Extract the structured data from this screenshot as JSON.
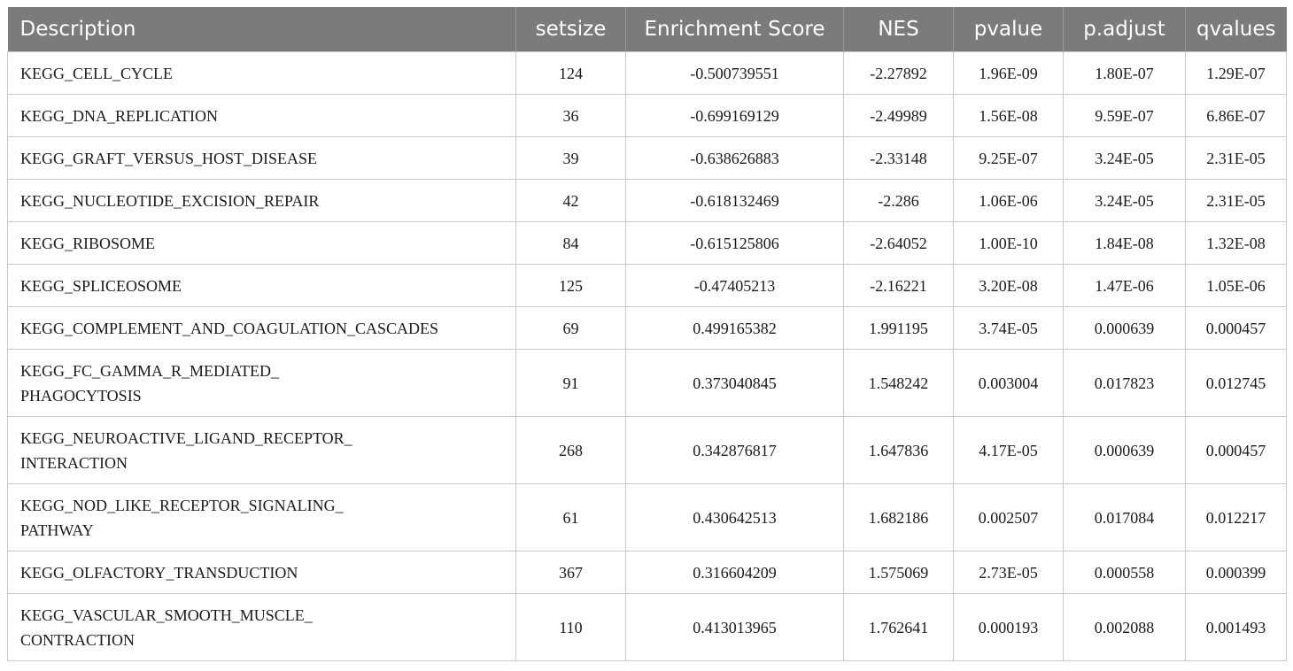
{
  "table": {
    "columns": [
      "Description",
      "setsize",
      "Enrichment Score",
      "NES",
      "pvalue",
      "p.adjust",
      "qvalues"
    ],
    "rows": [
      {
        "description": [
          "KEGG_CELL_CYCLE"
        ],
        "cells": [
          "124",
          "-0.500739551",
          "-2.27892",
          "1.96E-09",
          "1.80E-07",
          "1.29E-07"
        ]
      },
      {
        "description": [
          "KEGG_DNA_REPLICATION"
        ],
        "cells": [
          "36",
          "-0.699169129",
          "-2.49989",
          "1.56E-08",
          "9.59E-07",
          "6.86E-07"
        ]
      },
      {
        "description": [
          "KEGG_GRAFT_VERSUS_HOST_DISEASE"
        ],
        "cells": [
          "39",
          "-0.638626883",
          "-2.33148",
          "9.25E-07",
          "3.24E-05",
          "2.31E-05"
        ]
      },
      {
        "description": [
          "KEGG_NUCLEOTIDE_EXCISION_REPAIR"
        ],
        "cells": [
          "42",
          "-0.618132469",
          "-2.286",
          "1.06E-06",
          "3.24E-05",
          "2.31E-05"
        ]
      },
      {
        "description": [
          "KEGG_RIBOSOME"
        ],
        "cells": [
          "84",
          "-0.615125806",
          "-2.64052",
          "1.00E-10",
          "1.84E-08",
          "1.32E-08"
        ]
      },
      {
        "description": [
          "KEGG_SPLICEOSOME"
        ],
        "cells": [
          "125",
          "-0.47405213",
          "-2.16221",
          "3.20E-08",
          "1.47E-06",
          "1.05E-06"
        ]
      },
      {
        "description": [
          "KEGG_COMPLEMENT_AND_COAGULATION_CASCADES"
        ],
        "cells": [
          "69",
          "0.499165382",
          "1.991195",
          "3.74E-05",
          "0.000639",
          "0.000457"
        ]
      },
      {
        "description": [
          "KEGG_FC_GAMMA_R_MEDIATED_",
          "PHAGOCYTOSIS"
        ],
        "cells": [
          "91",
          "0.373040845",
          "1.548242",
          "0.003004",
          "0.017823",
          "0.012745"
        ]
      },
      {
        "description": [
          "KEGG_NEUROACTIVE_LIGAND_RECEPTOR_",
          "INTERACTION"
        ],
        "cells": [
          "268",
          "0.342876817",
          "1.647836",
          "4.17E-05",
          "0.000639",
          "0.000457"
        ]
      },
      {
        "description": [
          "KEGG_NOD_LIKE_RECEPTOR_SIGNALING_",
          "PATHWAY"
        ],
        "cells": [
          "61",
          "0.430642513",
          "1.682186",
          "0.002507",
          "0.017084",
          "0.012217"
        ]
      },
      {
        "description": [
          "KEGG_OLFACTORY_TRANSDUCTION"
        ],
        "cells": [
          "367",
          "0.316604209",
          "1.575069",
          "2.73E-05",
          "0.000558",
          "0.000399"
        ]
      },
      {
        "description": [
          "KEGG_VASCULAR_SMOOTH_MUSCLE_",
          "CONTRACTION"
        ],
        "cells": [
          "110",
          "0.413013965",
          "1.762641",
          "0.000193",
          "0.002088",
          "0.001493"
        ]
      }
    ]
  }
}
